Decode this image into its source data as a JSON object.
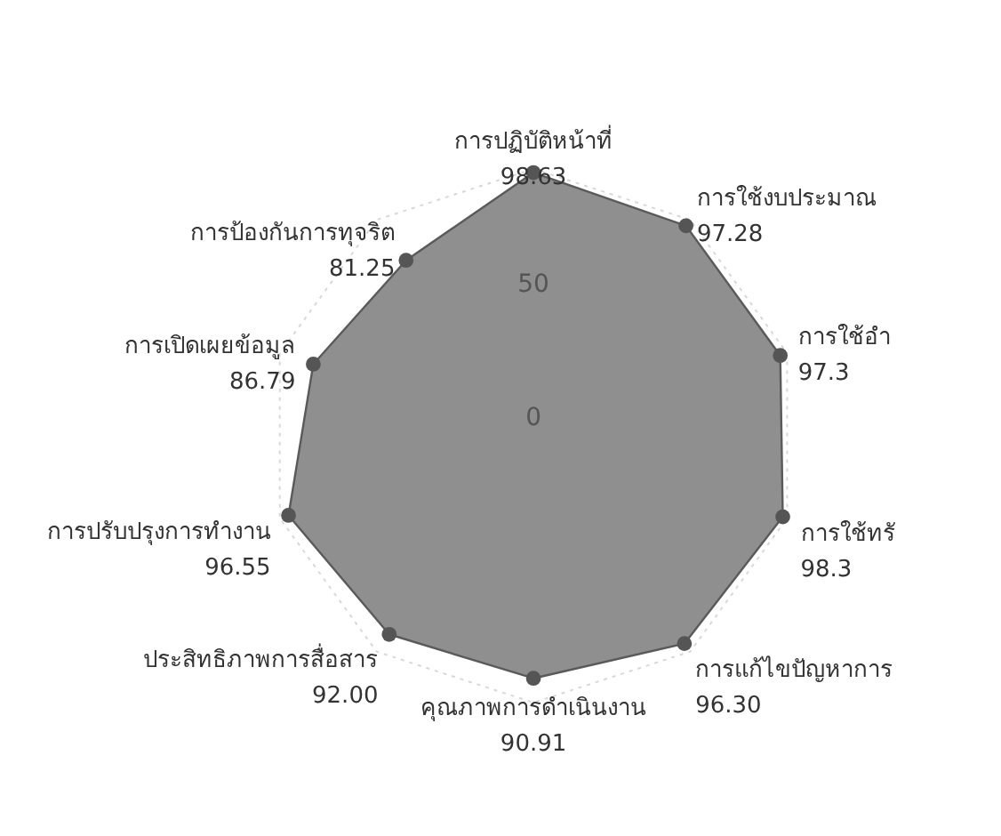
{
  "chart_data": {
    "type": "radar",
    "categories": [
      "การปฏิบัติหน้าที่",
      "การใช้งบประมาณ",
      "การใช้อำ",
      "การใช้ทรั",
      "การแก้ไขปัญหาการ",
      "คุณภาพการดำเนินงาน",
      "ประสิทธิภาพการสื่อสาร",
      "การปรับปรุงการทำงาน",
      "การเปิดเผยข้อมูล",
      "การป้องกันการทุจริต"
    ],
    "series": [
      {
        "color": "#8f8f8f",
        "values": [
          98.63,
          97.28,
          97.3,
          98.3,
          96.3,
          90.91,
          92.0,
          96.55,
          86.79,
          81.25
        ],
        "value_labels": [
          "98.63",
          "97.28",
          "97.3",
          "98.3",
          "96.30",
          "90.91",
          "92.00",
          "96.55",
          "86.79",
          "81.25"
        ]
      }
    ],
    "ylim": [
      0,
      100
    ],
    "yticks": [
      0,
      50
    ],
    "grid": true,
    "marker": "circle",
    "line_style": "solid"
  }
}
